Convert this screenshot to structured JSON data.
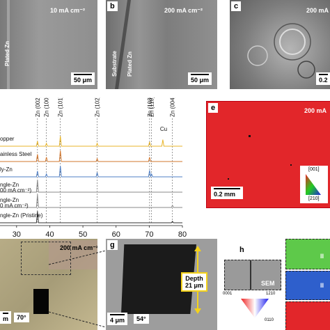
{
  "panel_a": {
    "condition": "10 mA cm⁻²",
    "label": "Plated Zn",
    "scale": "50 μm"
  },
  "panel_b": {
    "letter": "b",
    "condition": "200 mA cm⁻²",
    "label1": "Substrate",
    "label2": "Plated Zn",
    "scale": "50 μm"
  },
  "panel_c": {
    "letter": "c",
    "condition": "200 mA",
    "scale": "0.2"
  },
  "panel_e": {
    "letter": "e",
    "condition": "200 mA",
    "scale": "0.2 mm",
    "legend_top": "[001]",
    "legend_bottom": "[210]"
  },
  "panel_f": {
    "condition": "200 mA cm⁻²",
    "scale": "m",
    "angle": "70°"
  },
  "panel_g": {
    "letter": "g",
    "depth_label": "Depth",
    "depth_value": "21 μm",
    "scale": "4 μm",
    "angle": "54°"
  },
  "panel_h": {
    "letter": "h",
    "sem_label": "SEM",
    "tri_left": "0001",
    "tri_right": "1210",
    "tri_bottom": "0110",
    "side_labels": [
      "II",
      "II"
    ]
  },
  "chart_data": {
    "type": "line",
    "peak_labels": [
      "Zn (002)",
      "Zn (100)",
      "Zn (101)",
      "Zn (102)",
      "Zn (103)",
      "Zn (110)",
      "Zn (004)"
    ],
    "peak_positions": [
      36.3,
      39.0,
      43.2,
      54.3,
      70.1,
      70.7,
      77.0
    ],
    "extra_label": "Cu",
    "extra_position": 74.1,
    "x_ticks": [
      "30",
      "40",
      "50",
      "60",
      "70",
      "80"
    ],
    "xlim": [
      25,
      80
    ],
    "series": [
      {
        "name": "opper",
        "color": "#e8b52a",
        "peaks": [
          [
            36.3,
            0.35
          ],
          [
            39.0,
            0.2
          ],
          [
            43.2,
            0.7
          ],
          [
            54.3,
            0.2
          ],
          [
            70.1,
            0.3
          ],
          [
            74.1,
            0.45
          ]
        ]
      },
      {
        "name": "ainless Steel",
        "color": "#d2772e",
        "peaks": [
          [
            36.3,
            0.5
          ],
          [
            39.0,
            0.3
          ],
          [
            43.2,
            0.75
          ],
          [
            54.3,
            0.2
          ],
          [
            70.1,
            0.3
          ]
        ]
      },
      {
        "name": "ly-Zn",
        "color": "#4f7fc4",
        "peaks": [
          [
            36.3,
            0.4
          ],
          [
            39.0,
            0.2
          ],
          [
            43.2,
            0.75
          ],
          [
            54.3,
            0.3
          ],
          [
            70.1,
            0.45
          ],
          [
            70.7,
            0.2
          ]
        ]
      },
      {
        "name": "ngle-Zn",
        "sub": "00 mA cm⁻²)",
        "color": "#8a8a8a",
        "peaks": [
          [
            36.3,
            0.85
          ]
        ]
      },
      {
        "name": "ngle-Zn",
        "sub": "0 mA cm⁻²)",
        "color": "#8a8a8a",
        "peaks": [
          [
            36.3,
            0.9
          ],
          [
            77.0,
            0.15
          ]
        ]
      },
      {
        "name": "ngle-Zn (Pristine)",
        "color": "#333333",
        "peaks": [
          [
            36.3,
            0.8
          ],
          [
            77.0,
            0.1
          ]
        ]
      }
    ]
  }
}
